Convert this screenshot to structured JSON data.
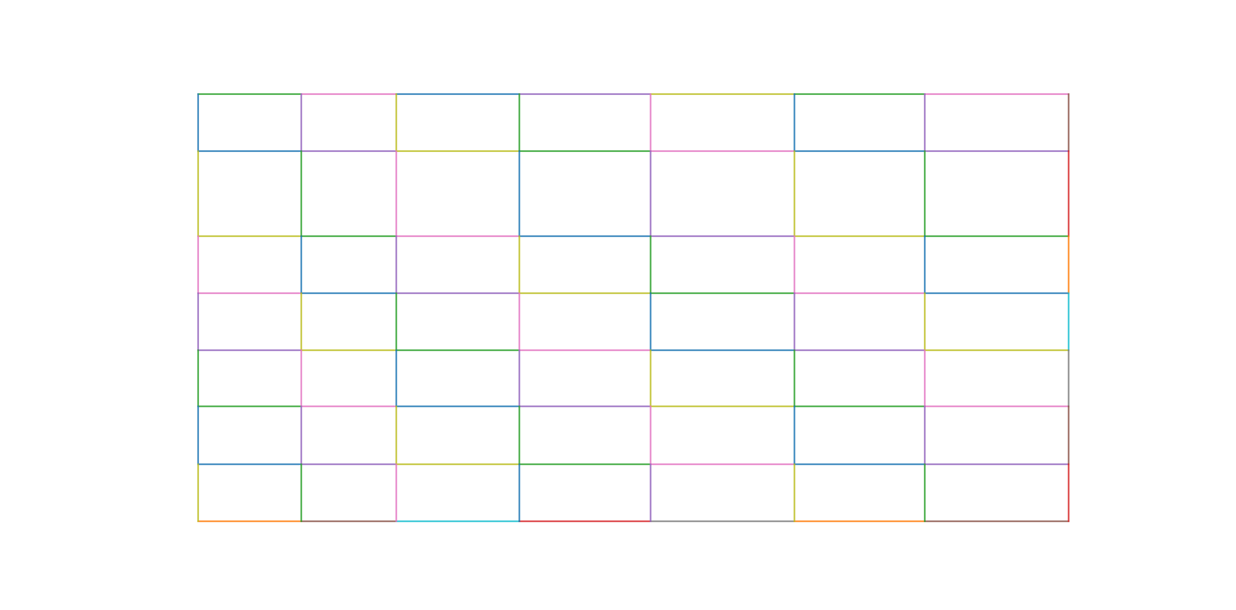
{
  "chart_data": {
    "type": "grid-of-rectangles",
    "rows": 7,
    "columns": 7,
    "palette": {
      "blue": "#1f77b4",
      "orange": "#ff7f0e",
      "green": "#2ca02c",
      "red": "#d62728",
      "purple": "#9467bd",
      "brown": "#8c564b",
      "pink": "#e377c2",
      "gray": "#7f7f7f",
      "olive": "#bcbd22",
      "cyan": "#17becf"
    },
    "horizontal_edge_colors": [
      [
        "green",
        "pink",
        "blue",
        "purple",
        "olive",
        "green",
        "pink"
      ],
      [
        "blue",
        "purple",
        "olive",
        "green",
        "pink",
        "blue",
        "purple"
      ],
      [
        "olive",
        "green",
        "pink",
        "blue",
        "purple",
        "olive",
        "green"
      ],
      [
        "pink",
        "blue",
        "purple",
        "olive",
        "green",
        "pink",
        "blue"
      ],
      [
        "purple",
        "olive",
        "green",
        "pink",
        "blue",
        "purple",
        "olive"
      ],
      [
        "green",
        "pink",
        "blue",
        "purple",
        "olive",
        "green",
        "pink"
      ],
      [
        "blue",
        "purple",
        "olive",
        "green",
        "pink",
        "blue",
        "purple"
      ],
      [
        "orange",
        "brown",
        "cyan",
        "red",
        "gray",
        "orange",
        "brown"
      ]
    ],
    "vertical_edge_colors": [
      [
        "blue",
        "olive",
        "pink",
        "purple",
        "green",
        "blue",
        "olive"
      ],
      [
        "purple",
        "green",
        "blue",
        "olive",
        "pink",
        "purple",
        "green"
      ],
      [
        "olive",
        "pink",
        "purple",
        "green",
        "blue",
        "olive",
        "pink"
      ],
      [
        "green",
        "blue",
        "olive",
        "pink",
        "purple",
        "green",
        "blue"
      ],
      [
        "pink",
        "purple",
        "green",
        "blue",
        "olive",
        "pink",
        "purple"
      ],
      [
        "blue",
        "olive",
        "pink",
        "purple",
        "green",
        "blue",
        "olive"
      ],
      [
        "purple",
        "green",
        "blue",
        "olive",
        "pink",
        "purple",
        "green"
      ],
      [
        "brown",
        "red",
        "orange",
        "cyan",
        "gray",
        "brown",
        "red"
      ]
    ]
  }
}
